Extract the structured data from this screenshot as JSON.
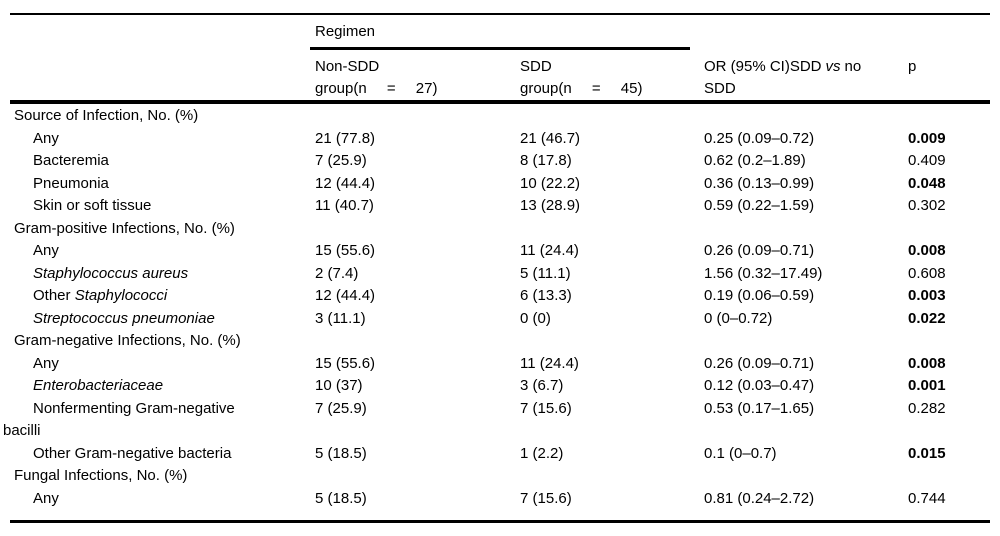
{
  "colors": {
    "text": "#000000",
    "rules": "#000000",
    "background": "#ffffff"
  },
  "header": {
    "regimen": "Regimen",
    "nonsdd_line1": "Non-SDD",
    "nonsdd_line2": "group(n = 27)",
    "sdd_line1": "SDD",
    "sdd_line2": "group(n = 45)",
    "or_prefix": "OR (95% CI)SDD",
    "or_vs": "vs",
    "or_suffix": "no SDD",
    "p": "p"
  },
  "rows": [
    {
      "type": "section",
      "label": "Source of Infection, No. (%)"
    },
    {
      "type": "item",
      "label": "Any",
      "nonsdd": "21 (77.8)",
      "sdd": "21 (46.7)",
      "or": "0.25 (0.09–0.72)",
      "p": "0.009",
      "p_bold": true
    },
    {
      "type": "item",
      "label": "Bacteremia",
      "nonsdd": "7 (25.9)",
      "sdd": "8 (17.8)",
      "or": "0.62 (0.2–1.89)",
      "p": "0.409",
      "p_bold": false
    },
    {
      "type": "item",
      "label": "Pneumonia",
      "nonsdd": "12 (44.4)",
      "sdd": "10 (22.2)",
      "or": "0.36 (0.13–0.99)",
      "p": "0.048",
      "p_bold": true
    },
    {
      "type": "item",
      "label": "Skin or soft tissue",
      "nonsdd": "11 (40.7)",
      "sdd": "13 (28.9)",
      "or": "0.59 (0.22–1.59)",
      "p": "0.302",
      "p_bold": false
    },
    {
      "type": "section",
      "label": "Gram-positive Infections, No. (%)"
    },
    {
      "type": "item",
      "label": "Any",
      "nonsdd": "15 (55.6)",
      "sdd": "11 (24.4)",
      "or": "0.26 (0.09–0.71)",
      "p": "0.008",
      "p_bold": true
    },
    {
      "type": "item",
      "label": "",
      "label_it": "Staphylococcus aureus",
      "nonsdd": "2 (7.4)",
      "sdd": "5 (11.1)",
      "or": "1.56 (0.32–17.49)",
      "p": "0.608",
      "p_bold": false
    },
    {
      "type": "item",
      "label": "Other ",
      "label_it": "Staphylococci",
      "nonsdd": "12 (44.4)",
      "sdd": "6 (13.3)",
      "or": "0.19 (0.06–0.59)",
      "p": "0.003",
      "p_bold": true
    },
    {
      "type": "item",
      "label": "",
      "label_it": "Streptococcus pneumoniae",
      "nonsdd": "3 (11.1)",
      "sdd": "0 (0)",
      "or": "0 (0–0.72)",
      "p": "0.022",
      "p_bold": true
    },
    {
      "type": "section",
      "label": "Gram-negative Infections, No. (%)"
    },
    {
      "type": "item",
      "label": "Any",
      "nonsdd": "15 (55.6)",
      "sdd": "11 (24.4)",
      "or": "0.26 (0.09–0.71)",
      "p": "0.008",
      "p_bold": true
    },
    {
      "type": "item",
      "label": "",
      "label_it": "Enterobacteriaceae",
      "nonsdd": "10 (37)",
      "sdd": "3 (6.7)",
      "or": "0.12 (0.03–0.47)",
      "p": "0.001",
      "p_bold": true
    },
    {
      "type": "item",
      "label": "Nonfermenting Gram-negative",
      "nonsdd": "7 (25.9)",
      "sdd": "7 (15.6)",
      "or": "0.53 (0.17–1.65)",
      "p": "0.282",
      "p_bold": false
    },
    {
      "type": "flush",
      "label": "bacilli"
    },
    {
      "type": "item",
      "label": "Other Gram-negative bacteria",
      "nonsdd": "5 (18.5)",
      "sdd": "1 (2.2)",
      "or": "0.1 (0–0.7)",
      "p": "0.015",
      "p_bold": true
    },
    {
      "type": "section",
      "label": "Fungal Infections, No. (%)"
    },
    {
      "type": "item",
      "label": "Any",
      "nonsdd": "5 (18.5)",
      "sdd": "7 (15.6)",
      "or": "0.81 (0.24–2.72)",
      "p": "0.744",
      "p_bold": false
    }
  ]
}
